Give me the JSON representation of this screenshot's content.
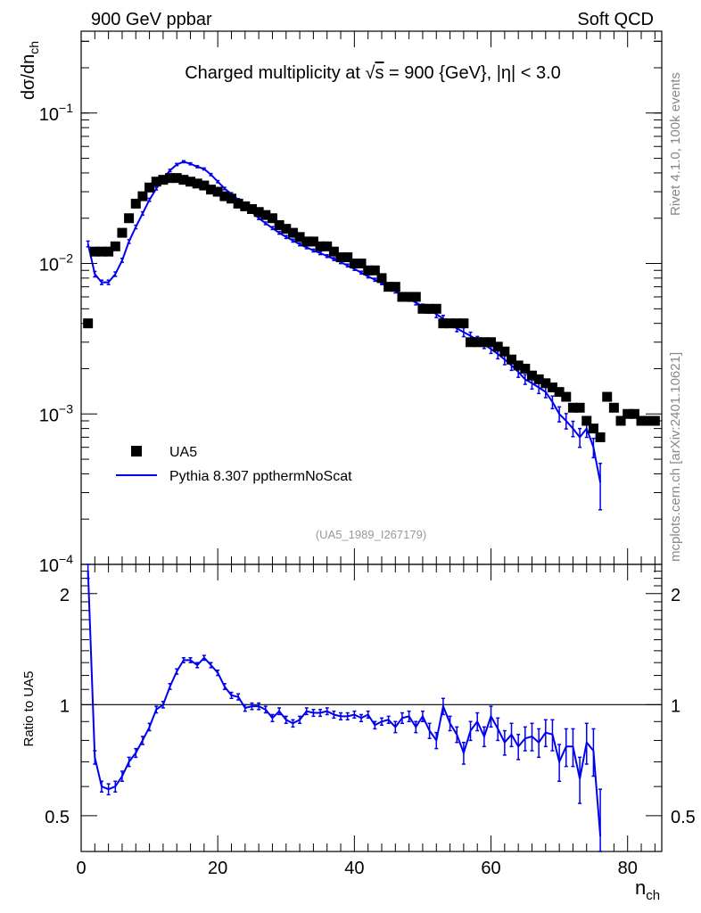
{
  "header": {
    "left": "900 GeV ppbar",
    "right": "Soft QCD"
  },
  "chart_title": {
    "prefix": "Charged multiplicity at ",
    "sqrt": "√",
    "s": "s",
    "suffix": " = 900 {GeV}, |η| < 3.0"
  },
  "side_text": {
    "rivet": "Rivet 4.1.0,  100k events",
    "mcplots": "mcplots.cern.ch [arXiv:2401.10621]"
  },
  "analysis_id": "(UA5_1989_I267179)",
  "axes": {
    "y_main_label": "dσ/dn",
    "y_main_sub": "ch",
    "y_ratio_label": "Ratio to UA5",
    "x_label": "n",
    "x_label_sub": "ch",
    "y_main_ticks": [
      {
        "base": "10",
        "exp": "−1",
        "value": 0.1
      },
      {
        "base": "10",
        "exp": "−2",
        "value": 0.01
      },
      {
        "base": "10",
        "exp": "−3",
        "value": 0.001
      },
      {
        "base": "10",
        "exp": "−4",
        "value": 0.0001
      }
    ],
    "y_ratio_ticks": [
      {
        "label": "2",
        "value": 2
      },
      {
        "label": "1",
        "value": 1
      },
      {
        "label": "0.5",
        "value": 0.5
      }
    ],
    "x_ticks": [
      {
        "label": "0",
        "value": 0
      },
      {
        "label": "20",
        "value": 20
      },
      {
        "label": "40",
        "value": 40
      },
      {
        "label": "60",
        "value": 60
      },
      {
        "label": "80",
        "value": 80
      }
    ]
  },
  "legend": {
    "data_label": "UA5",
    "mc_label": "Pythia 8.307 ppthermNoScat"
  },
  "colors": {
    "data": "#000000",
    "mc": "#0000ee"
  },
  "chart_data": [
    {
      "type": "scatter",
      "panel": "main",
      "xlabel": "n_ch",
      "ylabel": "dσ/dn_ch",
      "yscale": "log",
      "xlim": [
        0,
        85
      ],
      "ylim": [
        0.0001,
        0.35
      ],
      "series": [
        {
          "name": "UA5",
          "style": "markers",
          "x": [
            1,
            2,
            3,
            4,
            5,
            6,
            7,
            8,
            9,
            10,
            11,
            12,
            13,
            14,
            15,
            16,
            17,
            18,
            19,
            20,
            21,
            22,
            23,
            24,
            25,
            26,
            27,
            28,
            29,
            30,
            31,
            32,
            33,
            34,
            35,
            36,
            37,
            38,
            39,
            40,
            41,
            42,
            43,
            44,
            45,
            46,
            47,
            48,
            49,
            50,
            51,
            52,
            53,
            54,
            55,
            56,
            57,
            58,
            59,
            60,
            61,
            62,
            63,
            64,
            65,
            66,
            67,
            68,
            69,
            70,
            71,
            72,
            73,
            74,
            75,
            76,
            77,
            78,
            79,
            80,
            81,
            82,
            83,
            84
          ],
          "y": [
            0.004,
            0.012,
            0.012,
            0.012,
            0.013,
            0.016,
            0.02,
            0.025,
            0.028,
            0.032,
            0.035,
            0.036,
            0.037,
            0.037,
            0.036,
            0.035,
            0.034,
            0.033,
            0.031,
            0.03,
            0.028,
            0.027,
            0.025,
            0.024,
            0.023,
            0.022,
            0.021,
            0.02,
            0.018,
            0.017,
            0.016,
            0.015,
            0.014,
            0.014,
            0.013,
            0.013,
            0.012,
            0.011,
            0.011,
            0.01,
            0.01,
            0.009,
            0.009,
            0.008,
            0.007,
            0.007,
            0.006,
            0.006,
            0.006,
            0.005,
            0.005,
            0.005,
            0.004,
            0.004,
            0.004,
            0.004,
            0.003,
            0.003,
            0.003,
            0.003,
            0.0028,
            0.0026,
            0.0023,
            0.0021,
            0.002,
            0.0018,
            0.0017,
            0.0016,
            0.0015,
            0.0014,
            0.0013,
            0.0011,
            0.0011,
            0.0009,
            0.0008,
            0.0007,
            0.0013,
            0.0011,
            0.0009,
            0.001,
            0.001,
            0.0009,
            0.0009,
            0.0009
          ]
        },
        {
          "name": "Pythia 8.307 ppthermNoScat",
          "style": "line",
          "x": [
            1,
            2,
            3,
            4,
            5,
            6,
            7,
            8,
            9,
            10,
            11,
            12,
            13,
            14,
            15,
            16,
            17,
            18,
            19,
            20,
            21,
            22,
            23,
            24,
            25,
            26,
            27,
            28,
            29,
            30,
            31,
            32,
            33,
            34,
            35,
            36,
            37,
            38,
            39,
            40,
            41,
            42,
            43,
            44,
            45,
            46,
            47,
            48,
            49,
            50,
            51,
            52,
            53,
            54,
            55,
            56,
            57,
            58,
            59,
            60,
            61,
            62,
            63,
            64,
            65,
            66,
            67,
            68,
            69,
            70,
            71,
            72,
            73,
            74,
            75,
            76
          ],
          "y": [
            0.0135,
            0.0085,
            0.0075,
            0.0075,
            0.0085,
            0.0105,
            0.014,
            0.0175,
            0.0215,
            0.0265,
            0.0315,
            0.0365,
            0.0415,
            0.0455,
            0.0475,
            0.046,
            0.044,
            0.0425,
            0.039,
            0.035,
            0.0315,
            0.029,
            0.0265,
            0.024,
            0.022,
            0.02,
            0.0185,
            0.0172,
            0.016,
            0.015,
            0.0142,
            0.0134,
            0.0128,
            0.0122,
            0.0117,
            0.0112,
            0.0107,
            0.0102,
            0.0097,
            0.0092,
            0.0087,
            0.0082,
            0.0078,
            0.0074,
            0.007,
            0.0066,
            0.0062,
            0.0058,
            0.0055,
            0.0052,
            0.0049,
            0.0046,
            0.0043,
            0.004,
            0.0037,
            0.0035,
            0.0033,
            0.0031,
            0.0029,
            0.0027,
            0.0025,
            0.0023,
            0.0021,
            0.0019,
            0.0017,
            0.0016,
            0.0015,
            0.0014,
            0.0012,
            0.001,
            0.0009,
            0.0008,
            0.0007,
            0.0008,
            0.0006,
            0.00035
          ]
        }
      ]
    },
    {
      "type": "line",
      "panel": "ratio",
      "xlabel": "n_ch",
      "ylabel": "Ratio to UA5",
      "yscale": "log",
      "xlim": [
        0,
        85
      ],
      "ylim": [
        0.4,
        2.4
      ],
      "reference_line": 1,
      "series": [
        {
          "name": "Pythia 8.307 ppthermNoScat / UA5",
          "x": [
            1,
            2,
            3,
            4,
            5,
            6,
            7,
            8,
            9,
            10,
            11,
            12,
            13,
            14,
            15,
            16,
            17,
            18,
            19,
            20,
            21,
            22,
            23,
            24,
            25,
            26,
            27,
            28,
            29,
            30,
            31,
            32,
            33,
            34,
            35,
            36,
            37,
            38,
            39,
            40,
            41,
            42,
            43,
            44,
            45,
            46,
            47,
            48,
            49,
            50,
            51,
            52,
            53,
            54,
            55,
            56,
            57,
            58,
            59,
            60,
            61,
            62,
            63,
            64,
            65,
            66,
            67,
            68,
            69,
            70,
            71,
            72,
            73,
            74,
            75,
            76
          ],
          "y": [
            2.3,
            0.72,
            0.6,
            0.59,
            0.6,
            0.64,
            0.7,
            0.74,
            0.8,
            0.87,
            0.97,
            1.0,
            1.12,
            1.23,
            1.32,
            1.32,
            1.28,
            1.34,
            1.28,
            1.22,
            1.12,
            1.06,
            1.05,
            0.98,
            0.99,
            0.99,
            0.97,
            0.92,
            0.96,
            0.91,
            0.89,
            0.91,
            0.96,
            0.95,
            0.95,
            0.96,
            0.94,
            0.93,
            0.93,
            0.94,
            0.92,
            0.94,
            0.88,
            0.9,
            0.91,
            0.87,
            0.92,
            0.93,
            0.87,
            0.93,
            0.85,
            0.8,
            0.99,
            0.89,
            0.83,
            0.74,
            0.85,
            0.9,
            0.82,
            0.93,
            0.86,
            0.79,
            0.83,
            0.77,
            0.81,
            0.82,
            0.79,
            0.84,
            0.83,
            0.7,
            0.77,
            0.77,
            0.63,
            0.79,
            0.75,
            0.44
          ],
          "err": [
            0.1,
            0.03,
            0.02,
            0.02,
            0.02,
            0.02,
            0.02,
            0.02,
            0.02,
            0.02,
            0.02,
            0.02,
            0.02,
            0.02,
            0.02,
            0.02,
            0.02,
            0.02,
            0.02,
            0.02,
            0.02,
            0.02,
            0.02,
            0.02,
            0.02,
            0.02,
            0.02,
            0.02,
            0.02,
            0.02,
            0.02,
            0.02,
            0.02,
            0.02,
            0.02,
            0.02,
            0.02,
            0.02,
            0.02,
            0.02,
            0.02,
            0.02,
            0.02,
            0.02,
            0.02,
            0.03,
            0.03,
            0.03,
            0.03,
            0.03,
            0.04,
            0.04,
            0.05,
            0.04,
            0.04,
            0.05,
            0.05,
            0.05,
            0.05,
            0.06,
            0.06,
            0.06,
            0.06,
            0.06,
            0.06,
            0.07,
            0.07,
            0.07,
            0.08,
            0.08,
            0.09,
            0.09,
            0.09,
            0.1,
            0.11,
            0.15
          ]
        }
      ]
    }
  ]
}
